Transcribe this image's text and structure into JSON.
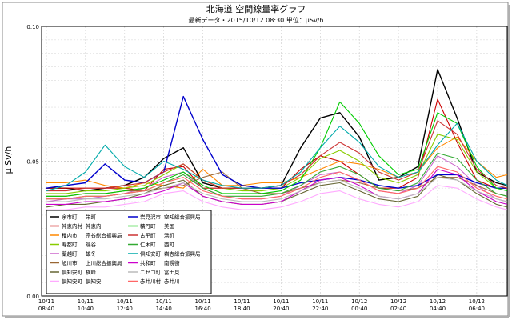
{
  "chart_data": {
    "type": "line",
    "title": "北海道 空間線量率グラフ",
    "subtitle": "最新データ・2015/10/12 08:30  単位：μSv/h",
    "ylabel": "μ Sv/h",
    "xlabel": "",
    "ylim": [
      0.0,
      0.1
    ],
    "yticks": [
      "0.00",
      "0.05",
      "0.10"
    ],
    "xticks": [
      {
        "date": "10/11",
        "time": "08:40"
      },
      {
        "date": "10/11",
        "time": "10:40"
      },
      {
        "date": "10/11",
        "time": "12:40"
      },
      {
        "date": "10/11",
        "time": "14:40"
      },
      {
        "date": "10/11",
        "time": "16:40"
      },
      {
        "date": "10/11",
        "time": "18:40"
      },
      {
        "date": "10/11",
        "time": "20:40"
      },
      {
        "date": "10/11",
        "time": "22:40"
      },
      {
        "date": "10/12",
        "time": "00:40"
      },
      {
        "date": "10/12",
        "time": "02:40"
      },
      {
        "date": "10/12",
        "time": "04:40"
      },
      {
        "date": "10/12",
        "time": "06:40"
      }
    ],
    "x_hours": [
      0,
      1,
      2,
      3,
      4,
      5,
      6,
      7,
      8,
      9,
      10,
      11,
      12,
      13,
      14,
      15,
      16,
      17,
      18,
      19,
      20,
      21,
      22,
      23,
      24
    ],
    "grid": true,
    "legend_placement": "bottom-left",
    "series": [
      {
        "town": "余市町",
        "place": "栄町",
        "color": "#000000",
        "values": [
          0.04,
          0.04,
          0.039,
          0.04,
          0.041,
          0.044,
          0.051,
          0.055,
          0.042,
          0.04,
          0.04,
          0.04,
          0.041,
          0.055,
          0.066,
          0.068,
          0.059,
          0.043,
          0.044,
          0.048,
          0.084,
          0.066,
          0.046,
          0.042,
          0.041
        ]
      },
      {
        "town": "神恵内村",
        "place": "神恵内",
        "color": "#cc0000",
        "values": [
          0.04,
          0.04,
          0.04,
          0.04,
          0.04,
          0.039,
          0.047,
          0.048,
          0.04,
          0.04,
          0.04,
          0.04,
          0.04,
          0.047,
          0.052,
          0.05,
          0.045,
          0.04,
          0.04,
          0.044,
          0.073,
          0.057,
          0.043,
          0.04,
          0.04
        ]
      },
      {
        "town": "稚内市",
        "place": "宗谷総合振興局",
        "color": "#ff8800",
        "values": [
          0.042,
          0.042,
          0.043,
          0.041,
          0.04,
          0.042,
          0.041,
          0.04,
          0.047,
          0.041,
          0.041,
          0.042,
          0.042,
          0.044,
          0.047,
          0.05,
          0.049,
          0.047,
          0.044,
          0.046,
          0.055,
          0.059,
          0.05,
          0.044,
          0.045
        ]
      },
      {
        "town": "寿都町",
        "place": "磯谷",
        "color": "#88cc00",
        "values": [
          0.038,
          0.038,
          0.039,
          0.039,
          0.04,
          0.041,
          0.045,
          0.049,
          0.043,
          0.04,
          0.039,
          0.039,
          0.04,
          0.044,
          0.051,
          0.054,
          0.05,
          0.044,
          0.042,
          0.045,
          0.06,
          0.058,
          0.046,
          0.04,
          0.04
        ]
      },
      {
        "town": "蘭越町",
        "place": "雄冬",
        "color": "#cc66cc",
        "values": [
          0.035,
          0.036,
          0.036,
          0.037,
          0.038,
          0.04,
          0.044,
          0.046,
          0.04,
          0.037,
          0.036,
          0.036,
          0.037,
          0.041,
          0.045,
          0.046,
          0.043,
          0.039,
          0.038,
          0.041,
          0.052,
          0.048,
          0.041,
          0.036,
          0.035
        ]
      },
      {
        "town": "旭川市",
        "place": "上川総合振興局",
        "color": "#996633",
        "values": [
          0.037,
          0.037,
          0.038,
          0.038,
          0.039,
          0.039,
          0.04,
          0.041,
          0.044,
          0.046,
          0.04,
          0.038,
          0.038,
          0.04,
          0.042,
          0.043,
          0.042,
          0.04,
          0.039,
          0.04,
          0.044,
          0.044,
          0.041,
          0.038,
          0.037
        ]
      },
      {
        "town": "倶知安町",
        "place": "横峰",
        "color": "#666633",
        "values": [
          0.033,
          0.034,
          0.034,
          0.035,
          0.036,
          0.038,
          0.041,
          0.043,
          0.037,
          0.035,
          0.034,
          0.034,
          0.035,
          0.038,
          0.041,
          0.042,
          0.039,
          0.036,
          0.035,
          0.037,
          0.045,
          0.043,
          0.038,
          0.034,
          0.033
        ]
      },
      {
        "town": "倶知安町",
        "place": "倶知安",
        "color": "#ffaaff",
        "values": [
          0.032,
          0.032,
          0.033,
          0.033,
          0.034,
          0.035,
          0.038,
          0.039,
          0.035,
          0.033,
          0.032,
          0.032,
          0.033,
          0.035,
          0.038,
          0.039,
          0.036,
          0.034,
          0.033,
          0.035,
          0.041,
          0.04,
          0.036,
          0.033,
          0.032
        ]
      },
      {
        "town": "岩見沢市",
        "place": "空知総合振興局",
        "color": "#0000cc",
        "values": [
          0.04,
          0.041,
          0.042,
          0.049,
          0.043,
          0.042,
          0.046,
          0.074,
          0.058,
          0.045,
          0.041,
          0.04,
          0.04,
          0.042,
          0.043,
          0.044,
          0.043,
          0.041,
          0.04,
          0.041,
          0.045,
          0.045,
          0.042,
          0.04,
          0.04
        ]
      },
      {
        "town": "積丹町",
        "place": "美国",
        "color": "#00cc00",
        "values": [
          0.037,
          0.037,
          0.038,
          0.038,
          0.039,
          0.04,
          0.043,
          0.046,
          0.041,
          0.038,
          0.038,
          0.038,
          0.039,
          0.043,
          0.055,
          0.072,
          0.064,
          0.052,
          0.045,
          0.047,
          0.068,
          0.064,
          0.048,
          0.04,
          0.039
        ]
      },
      {
        "town": "古平町",
        "place": "浜町",
        "color": "#cc3333",
        "values": [
          0.039,
          0.039,
          0.04,
          0.04,
          0.041,
          0.042,
          0.046,
          0.049,
          0.043,
          0.04,
          0.04,
          0.04,
          0.041,
          0.045,
          0.052,
          0.057,
          0.053,
          0.046,
          0.043,
          0.046,
          0.065,
          0.06,
          0.047,
          0.041,
          0.04
        ]
      },
      {
        "town": "仁木町",
        "place": "西町",
        "color": "#33aa33",
        "values": [
          0.036,
          0.036,
          0.037,
          0.037,
          0.038,
          0.039,
          0.042,
          0.045,
          0.04,
          0.037,
          0.037,
          0.037,
          0.038,
          0.041,
          0.046,
          0.048,
          0.045,
          0.04,
          0.039,
          0.042,
          0.053,
          0.051,
          0.043,
          0.038,
          0.037
        ]
      },
      {
        "town": "倶知安町",
        "place": "岩志総合振興局",
        "color": "#00aaaa",
        "values": [
          0.039,
          0.041,
          0.046,
          0.056,
          0.048,
          0.044,
          0.05,
          0.047,
          0.043,
          0.041,
          0.04,
          0.04,
          0.041,
          0.046,
          0.055,
          0.063,
          0.057,
          0.048,
          0.044,
          0.046,
          0.056,
          0.064,
          0.05,
          0.043,
          0.041
        ]
      },
      {
        "town": "共和町",
        "place": "南幌街",
        "color": "#cc00cc",
        "values": [
          0.034,
          0.034,
          0.035,
          0.035,
          0.036,
          0.037,
          0.039,
          0.042,
          0.037,
          0.035,
          0.034,
          0.034,
          0.035,
          0.039,
          0.043,
          0.044,
          0.041,
          0.037,
          0.036,
          0.038,
          0.047,
          0.045,
          0.039,
          0.035,
          0.034
        ]
      },
      {
        "town": "ニセコ町",
        "place": "富士見",
        "color": "#bbbbbb",
        "values": [
          0.035,
          0.035,
          0.036,
          0.036,
          0.037,
          0.038,
          0.04,
          0.042,
          0.038,
          0.036,
          0.035,
          0.035,
          0.036,
          0.039,
          0.042,
          0.043,
          0.04,
          0.037,
          0.036,
          0.038,
          0.044,
          0.043,
          0.039,
          0.036,
          0.035
        ]
      },
      {
        "town": "赤井川村",
        "place": "赤井川",
        "color": "#ff6666",
        "values": [
          0.036,
          0.036,
          0.037,
          0.037,
          0.038,
          0.039,
          0.042,
          0.044,
          0.039,
          0.037,
          0.036,
          0.036,
          0.037,
          0.04,
          0.044,
          0.046,
          0.043,
          0.039,
          0.038,
          0.04,
          0.048,
          0.046,
          0.04,
          0.037,
          0.036
        ]
      }
    ]
  }
}
